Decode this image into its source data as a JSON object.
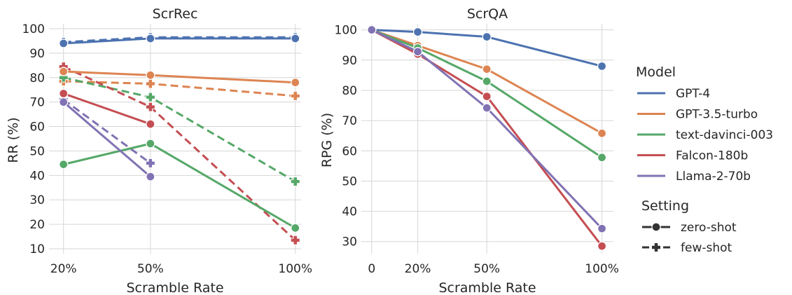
{
  "colors": {
    "GPT-4": "#4c72b0",
    "GPT-3.5-turbo": "#dd8452",
    "text-davinci-003": "#55a868",
    "Falcon-180b": "#c44e52",
    "Llama-2-70b": "#8172b3"
  },
  "chart_data": [
    {
      "type": "line",
      "title": "ScrRec",
      "xlabel": "Scramble Rate",
      "ylabel": "RR (%)",
      "categories": [
        "20%",
        "50%",
        "100%"
      ],
      "x": [
        20,
        50,
        100
      ],
      "ylim": [
        8,
        102
      ],
      "yticks": [
        10,
        20,
        30,
        40,
        50,
        60,
        70,
        80,
        90,
        100
      ],
      "grid": true,
      "series": [
        {
          "name": "GPT-4",
          "setting": "zero-shot",
          "values": [
            94,
            96,
            96
          ]
        },
        {
          "name": "GPT-4",
          "setting": "few-shot",
          "values": [
            94.5,
            96.5,
            96.5
          ]
        },
        {
          "name": "GPT-3.5-turbo",
          "setting": "zero-shot",
          "values": [
            82.5,
            81,
            78
          ]
        },
        {
          "name": "GPT-3.5-turbo",
          "setting": "few-shot",
          "values": [
            78.5,
            77.5,
            72.5
          ]
        },
        {
          "name": "text-davinci-003",
          "setting": "zero-shot",
          "values": [
            44.5,
            53,
            18.5
          ]
        },
        {
          "name": "text-davinci-003",
          "setting": "few-shot",
          "values": [
            80,
            72,
            37.5
          ]
        },
        {
          "name": "Falcon-180b",
          "setting": "zero-shot",
          "values": [
            73.5,
            61,
            null
          ]
        },
        {
          "name": "Falcon-180b",
          "setting": "few-shot",
          "values": [
            84.5,
            68,
            13.5
          ]
        },
        {
          "name": "Llama-2-70b",
          "setting": "zero-shot",
          "values": [
            70,
            39.5,
            null
          ]
        },
        {
          "name": "Llama-2-70b",
          "setting": "few-shot",
          "values": [
            71,
            45,
            null
          ]
        }
      ]
    },
    {
      "type": "line",
      "title": "ScrQA",
      "xlabel": "Scramble Rate",
      "ylabel": "RPG (%)",
      "categories": [
        "0",
        "20%",
        "50%",
        "100%"
      ],
      "x": [
        0,
        20,
        50,
        100
      ],
      "ylim": [
        26,
        102
      ],
      "yticks": [
        30,
        40,
        50,
        60,
        70,
        80,
        90,
        100
      ],
      "grid": true,
      "series": [
        {
          "name": "GPT-4",
          "setting": "zero-shot",
          "values": [
            100,
            99.3,
            97.7,
            88
          ]
        },
        {
          "name": "GPT-3.5-turbo",
          "setting": "zero-shot",
          "values": [
            100,
            94.8,
            87,
            65.8
          ]
        },
        {
          "name": "text-davinci-003",
          "setting": "zero-shot",
          "values": [
            100,
            94,
            83,
            57.8
          ]
        },
        {
          "name": "Falcon-180b",
          "setting": "zero-shot",
          "values": [
            100,
            92,
            78,
            28.5
          ]
        },
        {
          "name": "Llama-2-70b",
          "setting": "zero-shot",
          "values": [
            100,
            92.8,
            74.2,
            34.3
          ]
        }
      ]
    }
  ],
  "legend": {
    "placement": "right",
    "model_title": "Model",
    "models": [
      "GPT-4",
      "GPT-3.5-turbo",
      "text-davinci-003",
      "Falcon-180b",
      "Llama-2-70b"
    ],
    "setting_title": "Setting",
    "settings": [
      "zero-shot",
      "few-shot"
    ]
  }
}
